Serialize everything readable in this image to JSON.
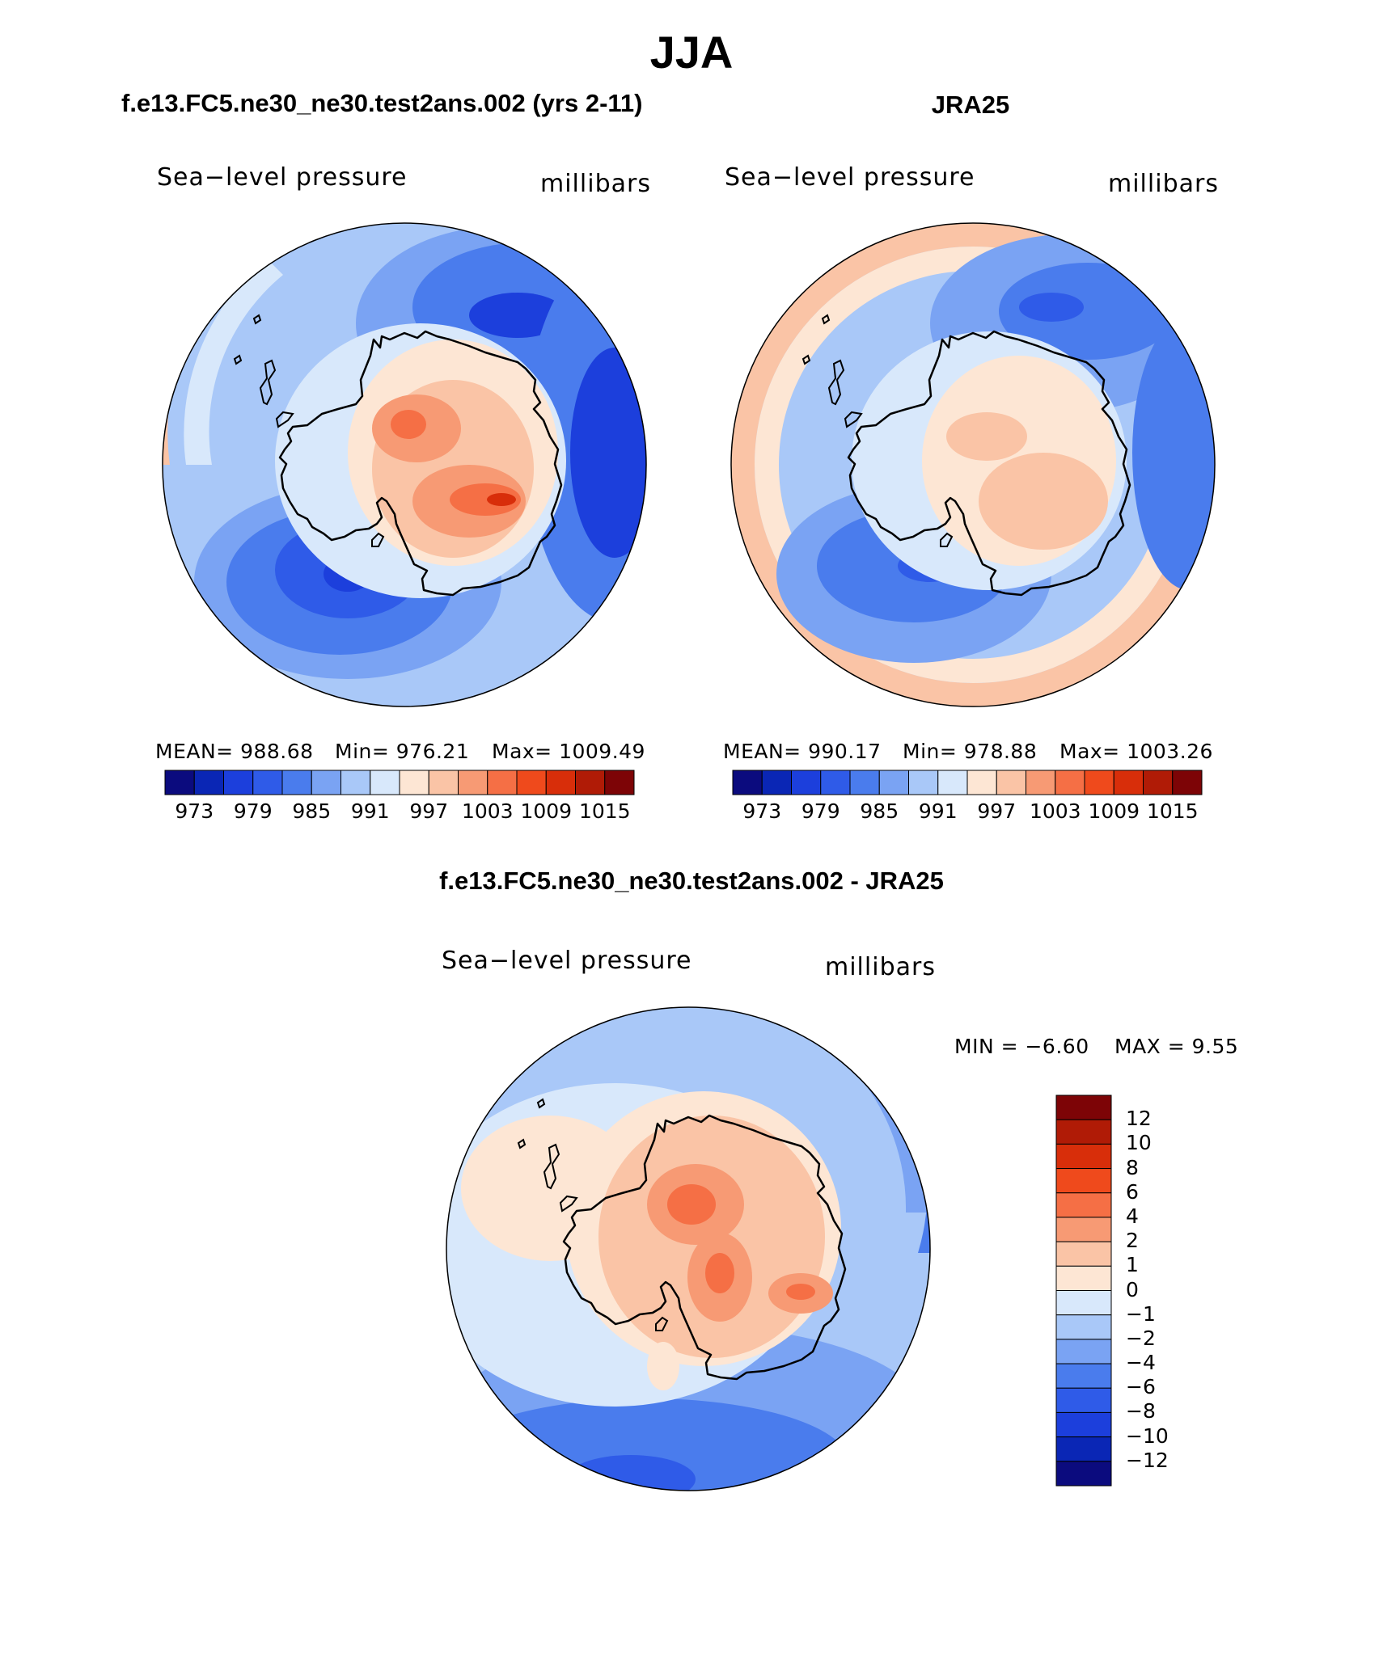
{
  "figure": {
    "season": "JJA",
    "left_title": "f.e13.FC5.ne30_ne30.test2ans.002 (yrs 2-11)",
    "right_title": "JRA25",
    "diff_title": "f.e13.FC5.ne30_ne30.test2ans.002 - JRA25"
  },
  "chart_data": [
    {
      "type": "filled-contour-map",
      "projection": "south polar stereographic",
      "name": "model",
      "variable": "Sea−level pressure",
      "units": "millibars",
      "stats": {
        "mean": "MEAN=  988.68",
        "min": "Min=  976.21",
        "max": "Max=  1009.49"
      },
      "levels": [
        973,
        976,
        979,
        982,
        985,
        988,
        991,
        994,
        997,
        1000,
        1003,
        1006,
        1009,
        1012,
        1015
      ],
      "tick_labels": [
        "973",
        "979",
        "985",
        "991",
        "997",
        "1003",
        "1009",
        "1015"
      ],
      "colors": [
        "#0b0b7e",
        "#0a26b5",
        "#1c3fdc",
        "#2f5be8",
        "#4a7ced",
        "#7aa3f3",
        "#a9c8f8",
        "#d8e8fb",
        "#fde6d4",
        "#fac4a6",
        "#f79a74",
        "#f56f45",
        "#ef4a1c",
        "#d82e0a",
        "#b01b06",
        "#7d0406"
      ]
    },
    {
      "type": "filled-contour-map",
      "projection": "south polar stereographic",
      "name": "obs",
      "variable": "Sea−level pressure",
      "units": "millibars",
      "stats": {
        "mean": "MEAN=  990.17",
        "min": "Min=  978.88",
        "max": "Max=  1003.26"
      },
      "levels": [
        973,
        976,
        979,
        982,
        985,
        988,
        991,
        994,
        997,
        1000,
        1003,
        1006,
        1009,
        1012,
        1015
      ],
      "tick_labels": [
        "973",
        "979",
        "985",
        "991",
        "997",
        "1003",
        "1009",
        "1015"
      ],
      "colors": [
        "#0b0b7e",
        "#0a26b5",
        "#1c3fdc",
        "#2f5be8",
        "#4a7ced",
        "#7aa3f3",
        "#a9c8f8",
        "#d8e8fb",
        "#fde6d4",
        "#fac4a6",
        "#f79a74",
        "#f56f45",
        "#ef4a1c",
        "#d82e0a",
        "#b01b06",
        "#7d0406"
      ]
    },
    {
      "type": "filled-contour-map",
      "projection": "south polar stereographic",
      "name": "difference",
      "variable": "Sea−level pressure",
      "units": "millibars",
      "stats_min": "MIN =   −6.60",
      "stats_max": "MAX =     9.55",
      "levels": [
        -12,
        -10,
        -8,
        -6,
        -4,
        -2,
        -1,
        0,
        1,
        2,
        4,
        6,
        8,
        10,
        12
      ],
      "tick_labels": [
        "12",
        "10",
        "8",
        "6",
        "4",
        "2",
        "1",
        "0",
        "−1",
        "−2",
        "−4",
        "−6",
        "−8",
        "−10",
        "−12"
      ],
      "colors": [
        "#7d0406",
        "#b01b06",
        "#d82e0a",
        "#ef4a1c",
        "#f56f45",
        "#f79a74",
        "#fac4a6",
        "#fde6d4",
        "#d8e8fb",
        "#a9c8f8",
        "#7aa3f3",
        "#4a7ced",
        "#2f5be8",
        "#1c3fdc",
        "#0a26b5",
        "#0b0b7e"
      ]
    }
  ]
}
